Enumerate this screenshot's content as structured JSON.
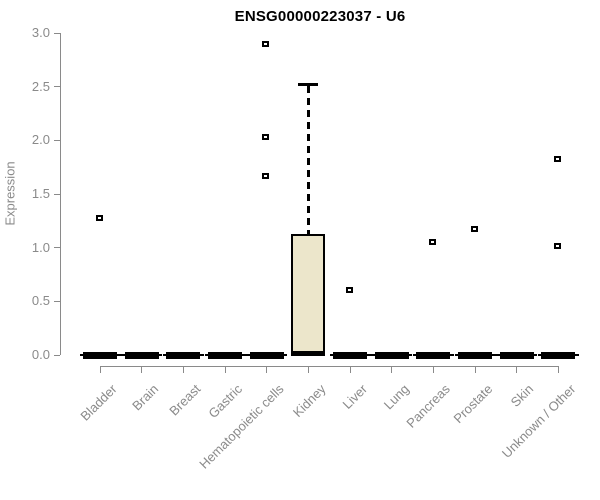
{
  "chart_data": {
    "type": "boxplot",
    "title": "ENSG00000223037 - U6",
    "xlabel": "",
    "ylabel": "Expression",
    "ylim": [
      0,
      3
    ],
    "yticks": [
      0.0,
      0.5,
      1.0,
      1.5,
      2.0,
      2.5,
      3.0
    ],
    "grid": false,
    "legend": false,
    "box_fill_color": "#ece6cb",
    "axis_color": "#8a8a8a",
    "categories": [
      "Bladder",
      "Brain",
      "Breast",
      "Gastric",
      "Hematopoietic cells",
      "Kidney",
      "Liver",
      "Lung",
      "Pancreas",
      "Prostate",
      "Skin",
      "Unknown / Other"
    ],
    "boxes": [
      {
        "category": "Bladder",
        "q1": 0,
        "median": 0,
        "q3": 0,
        "whisker_low": 0,
        "whisker_high": 0,
        "outliers": [
          1.28
        ]
      },
      {
        "category": "Brain",
        "q1": 0,
        "median": 0,
        "q3": 0,
        "whisker_low": 0,
        "whisker_high": 0,
        "outliers": []
      },
      {
        "category": "Breast",
        "q1": 0,
        "median": 0,
        "q3": 0,
        "whisker_low": 0,
        "whisker_high": 0,
        "outliers": []
      },
      {
        "category": "Gastric",
        "q1": 0,
        "median": 0,
        "q3": 0,
        "whisker_low": 0,
        "whisker_high": 0,
        "outliers": []
      },
      {
        "category": "Hematopoietic cells",
        "q1": 0,
        "median": 0,
        "q3": 0,
        "whisker_low": 0,
        "whisker_high": 0,
        "outliers": [
          1.67,
          2.03,
          2.9
        ]
      },
      {
        "category": "Kidney",
        "q1": 0.02,
        "median": 0.02,
        "q3": 1.13,
        "whisker_low": 0,
        "whisker_high": 2.52,
        "outliers": []
      },
      {
        "category": "Liver",
        "q1": 0,
        "median": 0,
        "q3": 0,
        "whisker_low": 0,
        "whisker_high": 0,
        "outliers": [
          0.61
        ]
      },
      {
        "category": "Lung",
        "q1": 0,
        "median": 0,
        "q3": 0,
        "whisker_low": 0,
        "whisker_high": 0,
        "outliers": []
      },
      {
        "category": "Pancreas",
        "q1": 0,
        "median": 0,
        "q3": 0,
        "whisker_low": 0,
        "whisker_high": 0,
        "outliers": [
          1.05
        ]
      },
      {
        "category": "Prostate",
        "q1": 0,
        "median": 0,
        "q3": 0,
        "whisker_low": 0,
        "whisker_high": 0,
        "outliers": [
          1.17
        ]
      },
      {
        "category": "Skin",
        "q1": 0,
        "median": 0,
        "q3": 0,
        "whisker_low": 0,
        "whisker_high": 0,
        "outliers": []
      },
      {
        "category": "Unknown / Other",
        "q1": 0,
        "median": 0,
        "q3": 0,
        "whisker_low": 0,
        "whisker_high": 0,
        "outliers": [
          1.02,
          1.83
        ]
      }
    ]
  }
}
